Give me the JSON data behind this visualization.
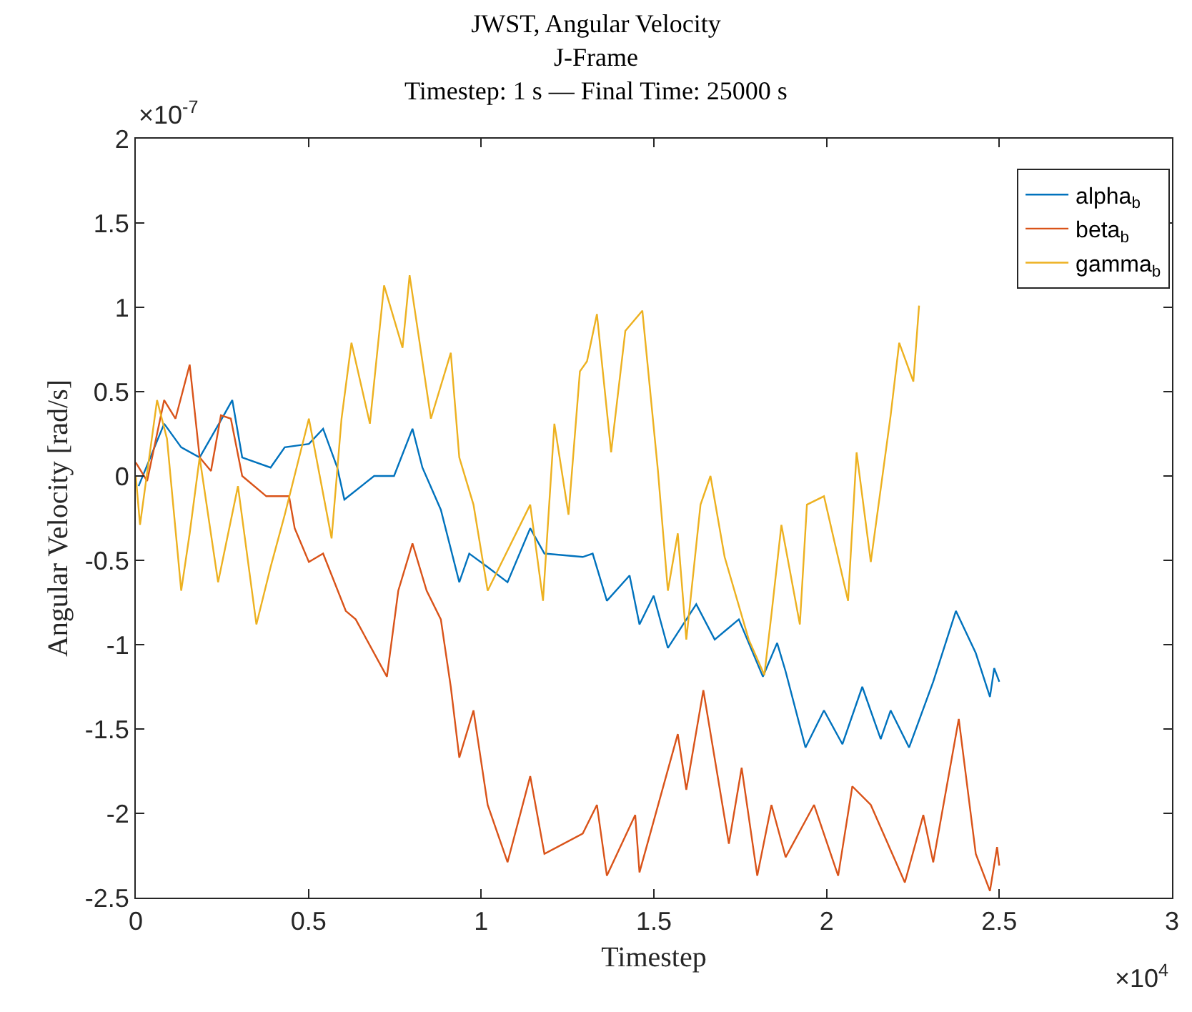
{
  "chart_data": {
    "type": "line",
    "title": "JWST, Angular Velocity\nJ-Frame\nTimestep: 1 s — Final Time: 25000 s",
    "xlabel": "Timestep",
    "ylabel": "Angular Velocity [rad/s]",
    "annotations": [
      "×10$^{-7}$",
      "×10$^{4}$"
    ],
    "xlim": [
      0,
      3
    ],
    "xticks": [
      0,
      0.5,
      1,
      1.5,
      2,
      2.5,
      3
    ],
    "ylim": [
      -2.5,
      2
    ],
    "yticks": [
      -2.5,
      -2,
      -1.5,
      -1,
      -0.5,
      0,
      0.5,
      1,
      1.5,
      2
    ],
    "legend": "top right",
    "marker": "none",
    "line_style": "solid",
    "series": [
      {
        "name": "alpha$_{b}$",
        "color": "#0072bd",
        "x": [
          0.0082,
          0.0822,
          0.1315,
          0.1849,
          0.2547,
          0.2793,
          0.3081,
          0.3903,
          0.4313,
          0.5012,
          0.5423,
          0.5833,
          0.6039,
          0.6901,
          0.7477,
          0.8011,
          0.8298,
          0.8832,
          0.9366,
          0.9654,
          1.0188,
          1.0763,
          1.142,
          1.1831,
          1.294,
          1.3228,
          1.3639,
          1.4296,
          1.4583,
          1.4994,
          1.5405,
          1.6227,
          1.6761,
          1.7459,
          1.8157,
          1.8568,
          1.8815,
          1.939,
          1.9924,
          2.0458,
          2.1033,
          2.1567,
          2.1855,
          2.2389,
          2.3087,
          2.3744,
          2.4319,
          2.473,
          2.4853,
          2.5
        ],
        "values": [
          -0.06,
          0.31,
          0.17,
          0.11,
          0.36,
          0.45,
          0.11,
          0.05,
          0.17,
          0.19,
          0.28,
          0.05,
          -0.14,
          0.0,
          0.0,
          0.28,
          0.05,
          -0.2,
          -0.63,
          -0.46,
          -0.54,
          -0.63,
          -0.31,
          -0.46,
          -0.48,
          -0.46,
          -0.74,
          -0.59,
          -0.88,
          -0.71,
          -1.02,
          -0.76,
          -0.97,
          -0.85,
          -1.19,
          -0.99,
          -1.16,
          -1.61,
          -1.39,
          -1.59,
          -1.25,
          -1.56,
          -1.39,
          -1.61,
          -1.22,
          -0.8,
          -1.05,
          -1.31,
          -1.14,
          -1.22
        ]
      },
      {
        "name": "beta$_{b}$",
        "color": "#d95319",
        "x": [
          0,
          0.0329,
          0.0822,
          0.115,
          0.1561,
          0.1849,
          0.2177,
          0.2465,
          0.2752,
          0.3081,
          0.3779,
          0.4437,
          0.4601,
          0.5012,
          0.5423,
          0.608,
          0.6367,
          0.7271,
          0.76,
          0.8011,
          0.8421,
          0.8832,
          0.912,
          0.9366,
          0.9777,
          1.0188,
          1.0763,
          1.142,
          1.1831,
          1.294,
          1.3351,
          1.3639,
          1.446,
          1.4583,
          1.5692,
          1.5939,
          1.6432,
          1.7171,
          1.7541,
          1.7993,
          1.8404,
          1.8815,
          1.9637,
          2.0335,
          2.0745,
          2.128,
          2.2266,
          2.28,
          2.3087,
          2.3827,
          2.4319,
          2.473,
          2.4936,
          2.5
        ],
        "values": [
          0.08,
          -0.03,
          0.45,
          0.34,
          0.66,
          0.11,
          0.03,
          0.36,
          0.34,
          0.0,
          -0.12,
          -0.12,
          -0.31,
          -0.51,
          -0.46,
          -0.8,
          -0.85,
          -1.19,
          -0.68,
          -0.4,
          -0.68,
          -0.85,
          -1.25,
          -1.67,
          -1.39,
          -1.95,
          -2.29,
          -1.78,
          -2.24,
          -2.12,
          -1.95,
          -2.37,
          -2.01,
          -2.35,
          -1.53,
          -1.86,
          -1.27,
          -2.18,
          -1.73,
          -2.37,
          -1.95,
          -2.26,
          -1.95,
          -2.37,
          -1.84,
          -1.95,
          -2.41,
          -2.01,
          -2.29,
          -1.44,
          -2.24,
          -2.46,
          -2.2,
          -2.31
        ]
      },
      {
        "name": "gamma$_{b}$",
        "color": "#edb120",
        "x": [
          0,
          0.0123,
          0.0616,
          0.0904,
          0.1315,
          0.1561,
          0.1849,
          0.2383,
          0.2958,
          0.3492,
          0.3903,
          0.4313,
          0.5012,
          0.5669,
          0.5957,
          0.6244,
          0.6778,
          0.7189,
          0.7723,
          0.7928,
          0.8545,
          0.912,
          0.9366,
          0.9777,
          1.0188,
          1.142,
          1.179,
          1.2119,
          1.2529,
          1.2858,
          1.3064,
          1.3351,
          1.3762,
          1.4173,
          1.4666,
          1.5118,
          1.5405,
          1.5692,
          1.5939,
          1.635,
          1.6638,
          1.7048,
          1.7746,
          1.8198,
          1.8404,
          1.8692,
          1.9226,
          1.9431,
          1.9924,
          2.0622,
          2.0869,
          2.128,
          2.1855,
          2.2102,
          2.2512,
          2.2677
        ],
        "values": [
          0.0,
          -0.29,
          0.45,
          0.22,
          -0.68,
          -0.34,
          0.11,
          -0.63,
          -0.06,
          -0.88,
          -0.54,
          -0.23,
          0.34,
          -0.37,
          0.34,
          0.79,
          0.31,
          1.13,
          0.76,
          1.19,
          0.34,
          0.73,
          0.11,
          -0.17,
          -0.68,
          -0.17,
          -0.74,
          0.31,
          -0.23,
          0.62,
          0.68,
          0.96,
          0.14,
          0.86,
          0.98,
          0.03,
          -0.68,
          -0.34,
          -0.97,
          -0.17,
          0.0,
          -0.48,
          -0.97,
          -1.18,
          -0.82,
          -0.29,
          -0.88,
          -0.17,
          -0.12,
          -0.74,
          0.14,
          -0.51,
          0.36,
          0.79,
          0.56,
          1.01
        ]
      }
    ]
  }
}
